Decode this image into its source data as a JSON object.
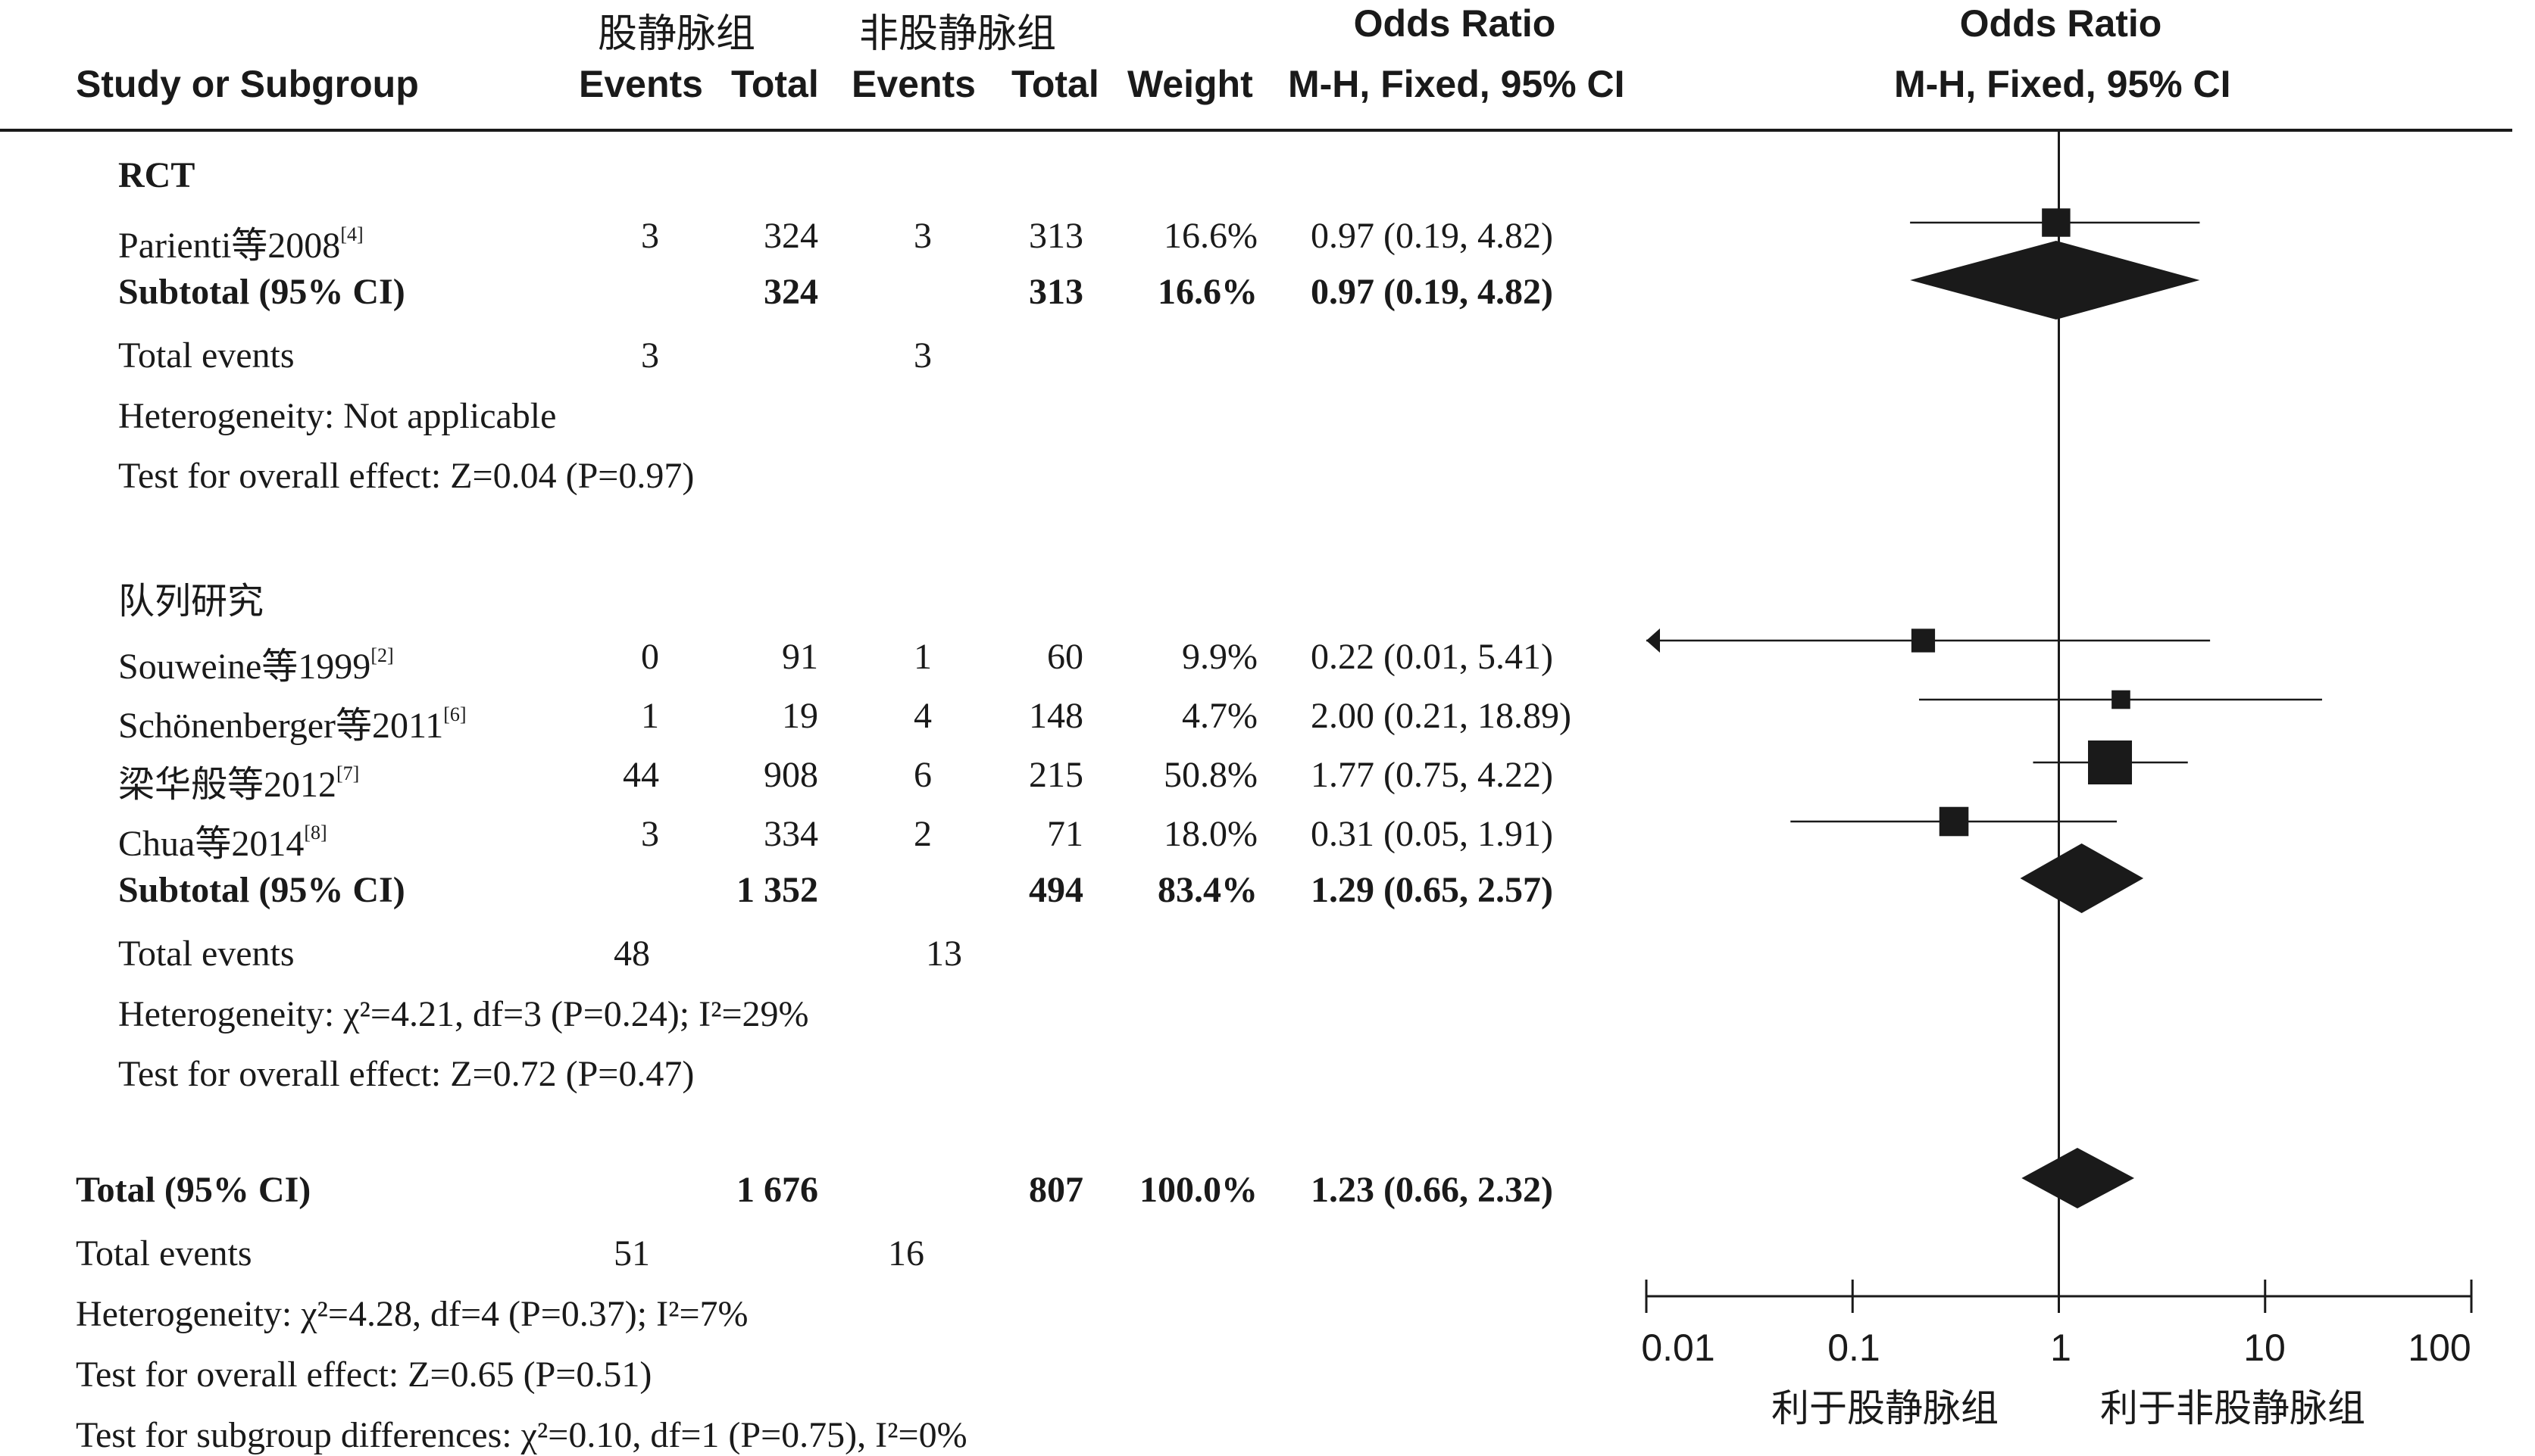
{
  "header": {
    "group1": "股静脉组",
    "group2": "非股静脉组",
    "or_title_table": "Odds Ratio",
    "or_title_plot": "Odds Ratio",
    "study_col": "Study or Subgroup",
    "events1": "Events",
    "total1": "Total",
    "events2": "Events",
    "total2": "Total",
    "weight": "Weight",
    "method_table": "M-H, Fixed, 95% CI",
    "method_plot": "M-H, Fixed, 95% CI"
  },
  "sections": [
    {
      "title": "RCT",
      "studies": [
        {
          "name": "Parienti等2008",
          "ref": "[4]",
          "e1": "3",
          "t1": "324",
          "e2": "3",
          "t2": "313",
          "weight": "16.6%",
          "or": "0.97 (0.19, 4.82)"
        }
      ],
      "subtotal": {
        "label": "Subtotal (95% CI)",
        "t1": "324",
        "t2": "313",
        "weight": "16.6%",
        "or": "0.97 (0.19, 4.82)"
      },
      "total_events": {
        "label": "Total events",
        "e1": "3",
        "e2": "3"
      },
      "heterogeneity": "Heterogeneity: Not applicable",
      "overall": "Test for overall effect: Z=0.04 (P=0.97)"
    },
    {
      "title": "队列研究",
      "studies": [
        {
          "name": "Souweine等1999",
          "ref": "[2]",
          "e1": "0",
          "t1": "91",
          "e2": "1",
          "t2": "60",
          "weight": "9.9%",
          "or": "0.22 (0.01, 5.41)"
        },
        {
          "name": "Schönenberger等2011",
          "ref": "[6]",
          "e1": "1",
          "t1": "19",
          "e2": "4",
          "t2": "148",
          "weight": "4.7%",
          "or": "2.00 (0.21, 18.89)"
        },
        {
          "name": "梁华般等2012",
          "ref": "[7]",
          "e1": "44",
          "t1": "908",
          "e2": "6",
          "t2": "215",
          "weight": "50.8%",
          "or": "1.77 (0.75, 4.22)"
        },
        {
          "name": "Chua等2014",
          "ref": "[8]",
          "e1": "3",
          "t1": "334",
          "e2": "2",
          "t2": "71",
          "weight": "18.0%",
          "or": "0.31 (0.05, 1.91)"
        }
      ],
      "subtotal": {
        "label": "Subtotal (95% CI)",
        "t1": "1 352",
        "t2": "494",
        "weight": "83.4%",
        "or": "1.29 (0.65, 2.57)"
      },
      "total_events": {
        "label": "Total events",
        "e1": "48",
        "e2": "13"
      },
      "heterogeneity": "Heterogeneity: χ²=4.21, df=3 (P=0.24); I²=29%",
      "overall": "Test for overall effect: Z=0.72 (P=0.47)"
    }
  ],
  "total": {
    "label": "Total (95% CI)",
    "t1": "1 676",
    "t2": "807",
    "weight": "100.0%",
    "or": "1.23 (0.66, 2.32)",
    "events_label": "Total events",
    "e1": "51",
    "e2": "16",
    "heterogeneity": "Heterogeneity: χ²=4.28, df=4 (P=0.37); I²=7%",
    "overall": "Test for overall effect: Z=0.65 (P=0.51)",
    "subgroup": "Test for subgroup differences: χ²=0.10, df=1 (P=0.75), I²=0%"
  },
  "axis": {
    "ticks": [
      "0.01",
      "0.1",
      "1",
      "10",
      "100"
    ],
    "favours_left": "利于股静脉组",
    "favours_right": "利于非股静脉组"
  },
  "chart_data": {
    "type": "forest",
    "scale": "log",
    "xlim": [
      0.01,
      100
    ],
    "reference_line": 1,
    "studies": [
      {
        "name": "Parienti等2008",
        "or": 0.97,
        "lo": 0.19,
        "hi": 4.82,
        "weight": 16.6
      },
      {
        "name": "Souweine等1999",
        "or": 0.22,
        "lo": 0.01,
        "hi": 5.41,
        "weight": 9.9
      },
      {
        "name": "Schönenberger等2011",
        "or": 2.0,
        "lo": 0.21,
        "hi": 18.89,
        "weight": 4.7
      },
      {
        "name": "梁华般等2012",
        "or": 1.77,
        "lo": 0.75,
        "hi": 4.22,
        "weight": 50.8
      },
      {
        "name": "Chua等2014",
        "or": 0.31,
        "lo": 0.05,
        "hi": 1.91,
        "weight": 18.0
      }
    ],
    "diamonds": [
      {
        "name": "RCT subtotal",
        "or": 0.97,
        "lo": 0.19,
        "hi": 4.82
      },
      {
        "name": "队列研究 subtotal",
        "or": 1.29,
        "lo": 0.65,
        "hi": 2.57
      },
      {
        "name": "Total",
        "or": 1.23,
        "lo": 0.66,
        "hi": 2.32
      }
    ]
  }
}
